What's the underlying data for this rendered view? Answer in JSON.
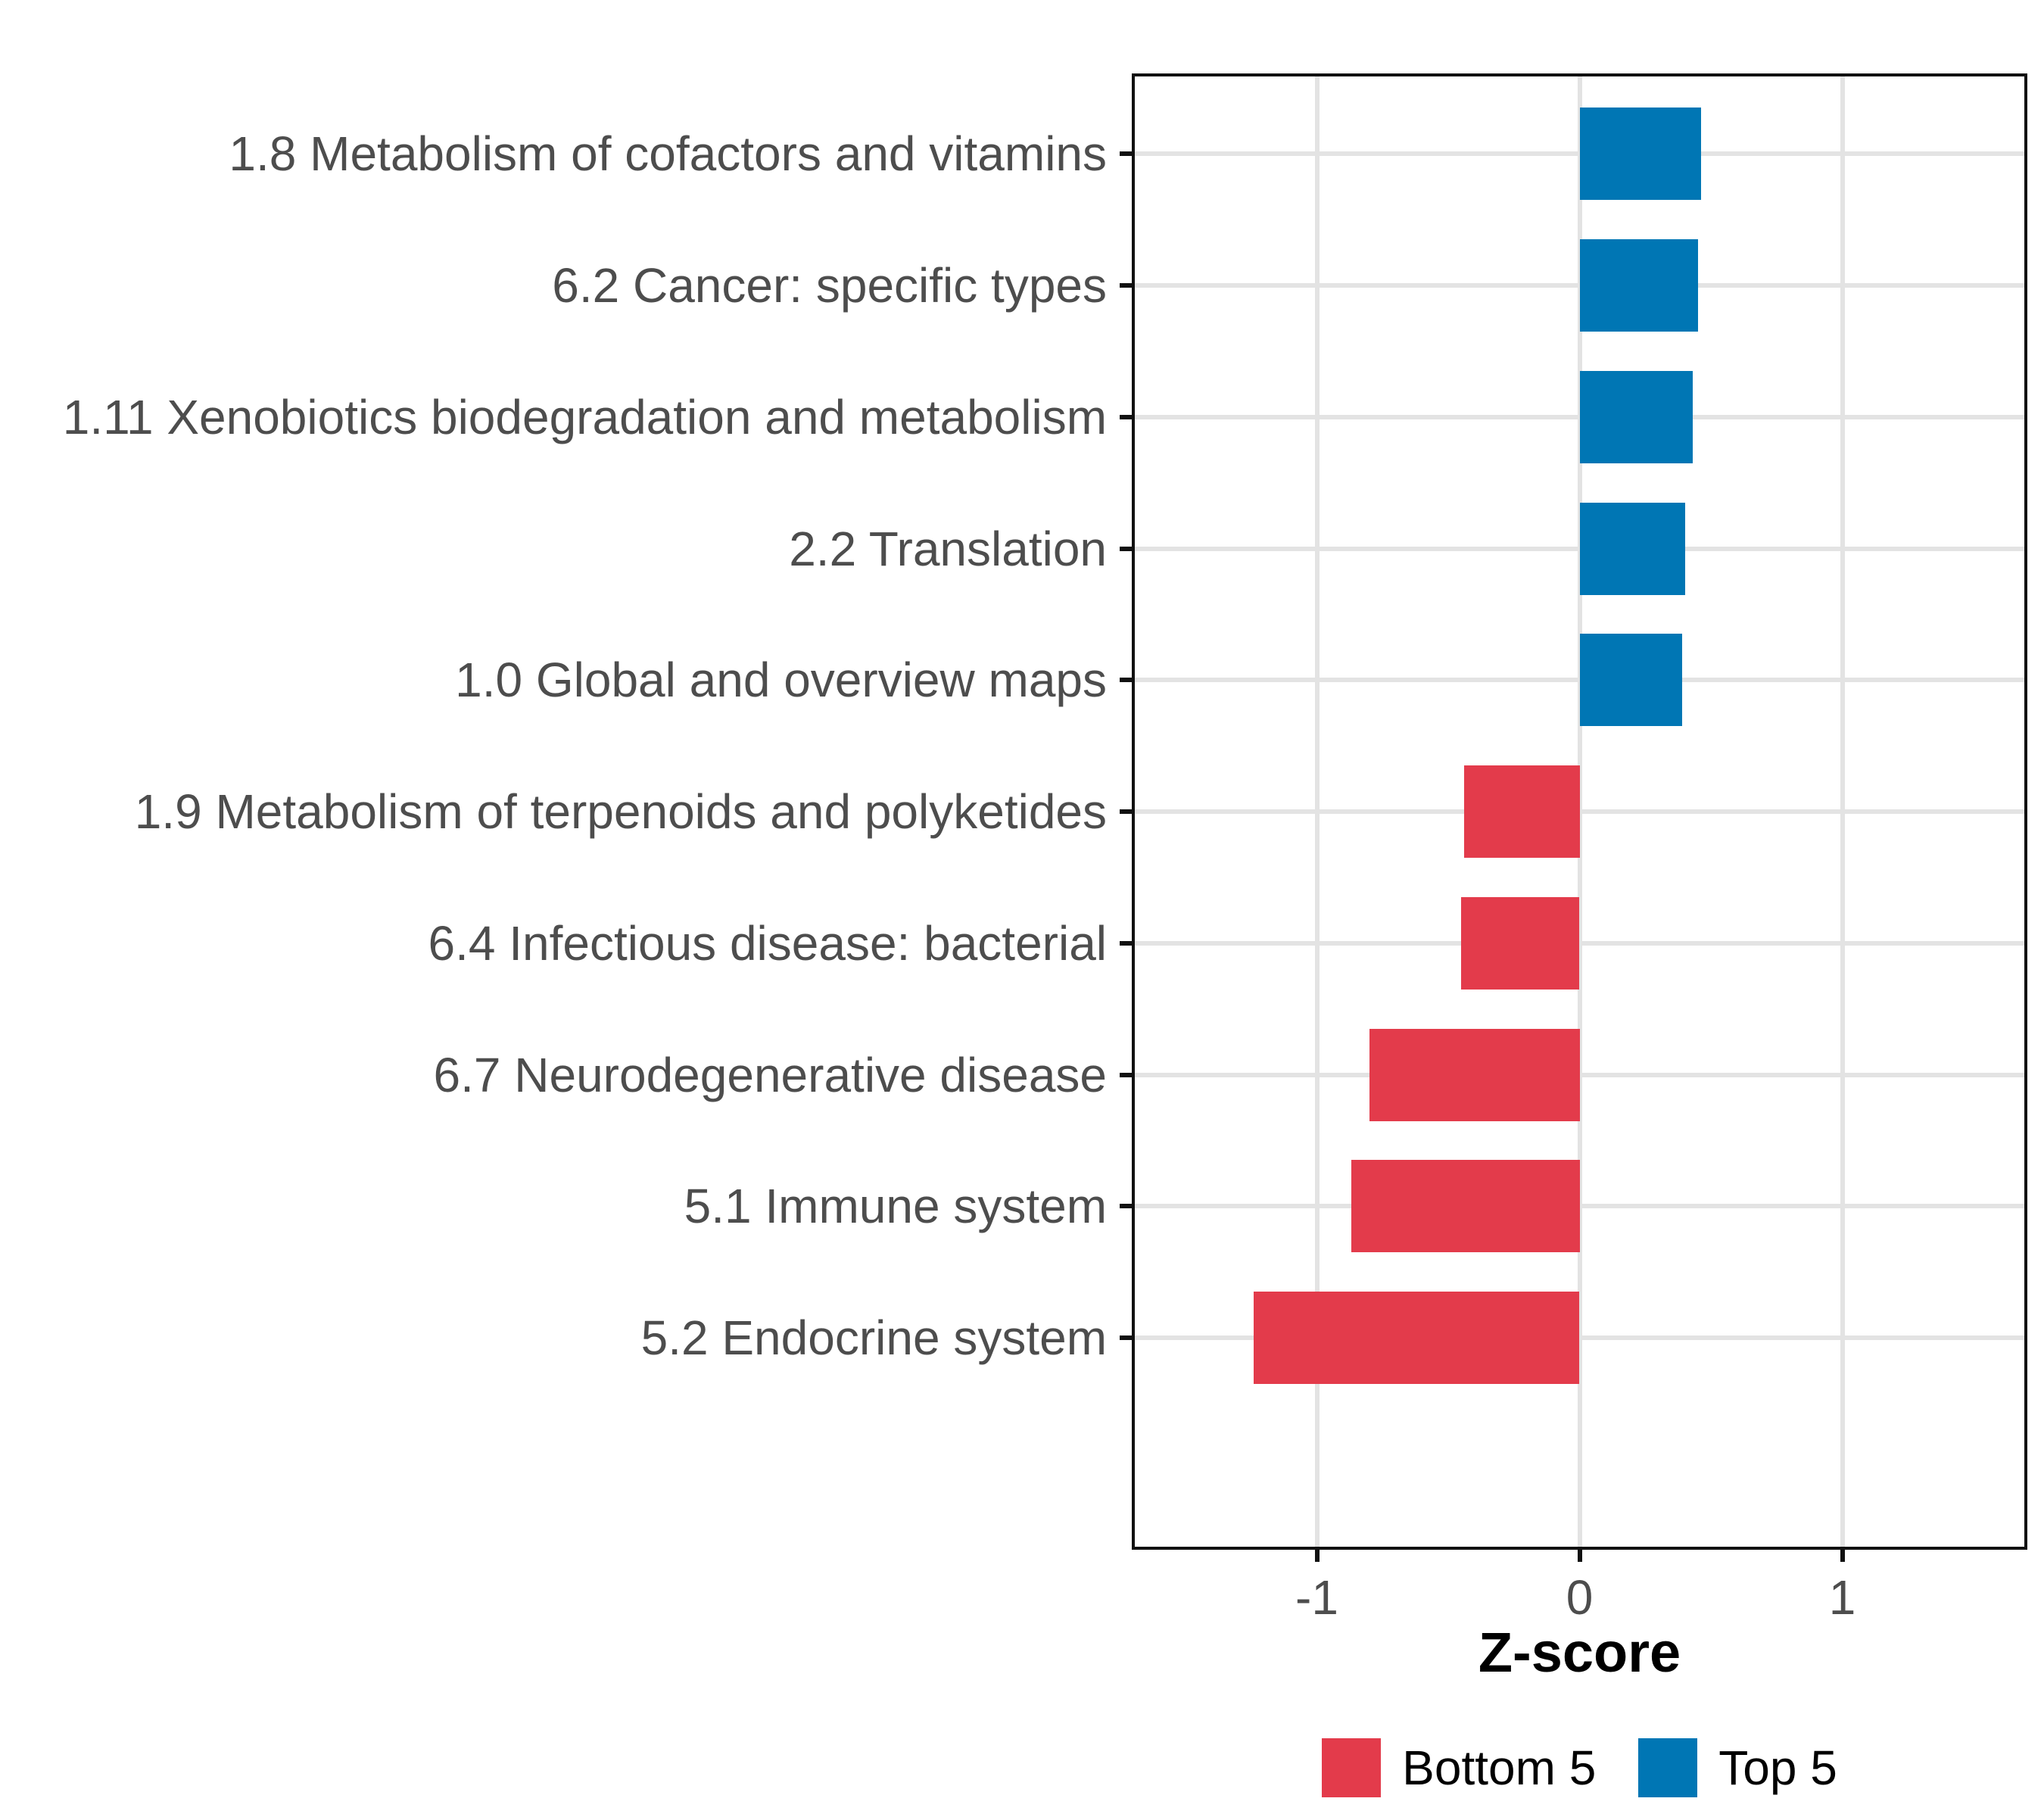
{
  "chart_data": {
    "type": "bar",
    "orientation": "horizontal",
    "title": "",
    "xlabel": "Z-score",
    "ylabel": "",
    "xlim": [
      -1.7,
      1.7
    ],
    "grid": "major-only",
    "legend_position": "bottom",
    "categories": [
      "1.8 Metabolism of cofactors and vitamins",
      "6.2 Cancer: specific types",
      "1.11 Xenobiotics biodegradation and metabolism",
      "2.2 Translation",
      "1.0 Global and overview maps",
      "1.9 Metabolism of terpenoids and polyketides",
      "6.4 Infectious disease: bacterial",
      "6.7 Neurodegenerative disease",
      "5.1 Immune system",
      "5.2 Endocrine system"
    ],
    "values": [
      0.46,
      0.45,
      0.43,
      0.4,
      0.39,
      -0.44,
      -0.45,
      -0.8,
      -0.87,
      -1.24
    ],
    "bar_groups": [
      "Top 5",
      "Top 5",
      "Top 5",
      "Top 5",
      "Top 5",
      "Bottom 5",
      "Bottom 5",
      "Bottom 5",
      "Bottom 5",
      "Bottom 5"
    ],
    "x_ticks": [
      {
        "value": -1,
        "label": "-1"
      },
      {
        "value": 0,
        "label": "0"
      },
      {
        "value": 1,
        "label": "1"
      }
    ],
    "legend": [
      {
        "label": "Bottom 5",
        "color": "#E33B4B"
      },
      {
        "label": "Top 5",
        "color": "#0076B4"
      }
    ],
    "style": {
      "bar_positive_color": "#0076B4",
      "bar_negative_color": "#E33B4B",
      "gridline_color": "#E3E3E3",
      "panel_border_color": "#111111",
      "axis_text_color": "#4D4D4D",
      "axis_title_color": "#000000"
    }
  }
}
